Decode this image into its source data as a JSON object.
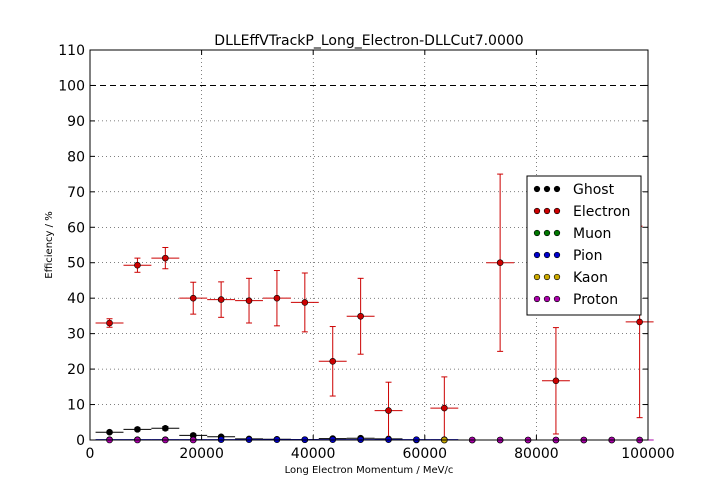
{
  "chart_data": {
    "type": "scatter",
    "title": "DLLEffVTrackP_Long_Electron-DLLCut7.0000",
    "xlabel": "Long Electron Momentum / MeV/c",
    "ylabel": "Efficiency / %",
    "xlim": [
      0,
      100000
    ],
    "ylim": [
      0,
      110
    ],
    "x_ticks": [
      "0",
      "20000",
      "40000",
      "60000",
      "80000",
      "100000"
    ],
    "y_ticks": [
      "0",
      "10",
      "20",
      "30",
      "40",
      "50",
      "60",
      "70",
      "80",
      "90",
      "100",
      "110"
    ],
    "grid": true,
    "reference_line_y": 100,
    "legend_position": "right",
    "series": [
      {
        "name": "Ghost",
        "color": "#000000",
        "points": [
          {
            "x": 3500,
            "xerr": 2500,
            "y": 2.2,
            "yerr": 0.3
          },
          {
            "x": 8500,
            "xerr": 2500,
            "y": 3.0,
            "yerr": 0.4
          },
          {
            "x": 13500,
            "xerr": 2500,
            "y": 3.3,
            "yerr": 0.5
          },
          {
            "x": 18500,
            "xerr": 2500,
            "y": 1.3,
            "yerr": 0.4
          },
          {
            "x": 23500,
            "xerr": 2500,
            "y": 0.9,
            "yerr": 0.3
          },
          {
            "x": 28500,
            "xerr": 2500,
            "y": 0.3,
            "yerr": 0.2
          },
          {
            "x": 33500,
            "xerr": 2500,
            "y": 0.2,
            "yerr": 0.2
          },
          {
            "x": 38500,
            "xerr": 2500,
            "y": 0.1,
            "yerr": 0.1
          },
          {
            "x": 43500,
            "xerr": 2500,
            "y": 0.4,
            "yerr": 0.2
          },
          {
            "x": 48500,
            "xerr": 2500,
            "y": 0.5,
            "yerr": 0.3
          },
          {
            "x": 53500,
            "xerr": 2500,
            "y": 0.3,
            "yerr": 0.2
          },
          {
            "x": 58500,
            "xerr": 2500,
            "y": 0.0,
            "yerr": 0.0
          },
          {
            "x": 63500,
            "xerr": 2500,
            "y": 0.0,
            "yerr": 0.0
          },
          {
            "x": 68500,
            "xerr": 2500,
            "y": 0.0,
            "yerr": 0.0
          },
          {
            "x": 73500,
            "xerr": 2500,
            "y": 0.0,
            "yerr": 0.0
          },
          {
            "x": 78500,
            "xerr": 2500,
            "y": 0.0,
            "yerr": 0.0
          },
          {
            "x": 83500,
            "xerr": 2500,
            "y": 0.0,
            "yerr": 0.0
          },
          {
            "x": 88500,
            "xerr": 2500,
            "y": 0.0,
            "yerr": 0.0
          },
          {
            "x": 93500,
            "xerr": 2500,
            "y": 0.0,
            "yerr": 0.0
          },
          {
            "x": 98500,
            "xerr": 2500,
            "y": 0.0,
            "yerr": 0.0
          }
        ]
      },
      {
        "name": "Electron",
        "color": "#cc0000",
        "points": [
          {
            "x": 3500,
            "xerr": 2500,
            "y": 33.0,
            "yerr": 1.2
          },
          {
            "x": 8500,
            "xerr": 2500,
            "y": 49.3,
            "yerr": 2.0
          },
          {
            "x": 13500,
            "xerr": 2500,
            "y": 51.3,
            "yerr": 3.0
          },
          {
            "x": 18500,
            "xerr": 2500,
            "y": 40.0,
            "yerr": 4.5
          },
          {
            "x": 23500,
            "xerr": 2500,
            "y": 39.6,
            "yerr": 5.0
          },
          {
            "x": 28500,
            "xerr": 2500,
            "y": 39.3,
            "yerr": 6.3
          },
          {
            "x": 33500,
            "xerr": 2500,
            "y": 40.0,
            "yerr": 7.8
          },
          {
            "x": 38500,
            "xerr": 2500,
            "y": 38.8,
            "yerr": 8.3
          },
          {
            "x": 43500,
            "xerr": 2500,
            "y": 22.2,
            "yerr": 9.8
          },
          {
            "x": 48500,
            "xerr": 2500,
            "y": 34.9,
            "yerr": 10.7
          },
          {
            "x": 53500,
            "xerr": 2500,
            "y": 8.3,
            "yerr": 8.0
          },
          {
            "x": 63500,
            "xerr": 2500,
            "y": 9.0,
            "yerr": 8.8
          },
          {
            "x": 73500,
            "xerr": 2500,
            "y": 50.0,
            "yerr": 25.0
          },
          {
            "x": 83500,
            "xerr": 2500,
            "y": 16.7,
            "yerr": 15.0
          },
          {
            "x": 98500,
            "xerr": 2500,
            "y": 33.3,
            "yerr": 27.0
          }
        ]
      },
      {
        "name": "Muon",
        "color": "#007700",
        "points": []
      },
      {
        "name": "Pion",
        "color": "#0000cc",
        "points": [
          {
            "x": 3500,
            "xerr": 2500,
            "y": 0.1,
            "yerr": 0.05
          },
          {
            "x": 8500,
            "xerr": 2500,
            "y": 0.1,
            "yerr": 0.05
          },
          {
            "x": 13500,
            "xerr": 2500,
            "y": 0.1,
            "yerr": 0.05
          },
          {
            "x": 18500,
            "xerr": 2500,
            "y": 0.1,
            "yerr": 0.05
          },
          {
            "x": 23500,
            "xerr": 2500,
            "y": 0.1,
            "yerr": 0.05
          },
          {
            "x": 28500,
            "xerr": 2500,
            "y": 0.1,
            "yerr": 0.05
          },
          {
            "x": 33500,
            "xerr": 2500,
            "y": 0.1,
            "yerr": 0.05
          },
          {
            "x": 38500,
            "xerr": 2500,
            "y": 0.1,
            "yerr": 0.05
          },
          {
            "x": 43500,
            "xerr": 2500,
            "y": 0.1,
            "yerr": 0.05
          },
          {
            "x": 48500,
            "xerr": 2500,
            "y": 0.1,
            "yerr": 0.05
          },
          {
            "x": 53500,
            "xerr": 2500,
            "y": 0.1,
            "yerr": 0.05
          },
          {
            "x": 58500,
            "xerr": 2500,
            "y": 0.1,
            "yerr": 0.05
          },
          {
            "x": 63500,
            "xerr": 2500,
            "y": 0.1,
            "yerr": 0.05
          }
        ]
      },
      {
        "name": "Kaon",
        "color": "#ccaa00",
        "points": [
          {
            "x": 63500,
            "xerr": 2500,
            "y": 0.0,
            "yerr": 0.0
          }
        ]
      },
      {
        "name": "Proton",
        "color": "#aa00aa",
        "points": [
          {
            "x": 3500,
            "xerr": 2500,
            "y": 0.0,
            "yerr": 0.0
          },
          {
            "x": 8500,
            "xerr": 2500,
            "y": 0.0,
            "yerr": 0.0
          },
          {
            "x": 13500,
            "xerr": 2500,
            "y": 0.0,
            "yerr": 0.0
          },
          {
            "x": 18500,
            "xerr": 2500,
            "y": 0.0,
            "yerr": 0.0
          },
          {
            "x": 68500,
            "xerr": 2500,
            "y": 0.0,
            "yerr": 0.0
          },
          {
            "x": 73500,
            "xerr": 2500,
            "y": 0.0,
            "yerr": 0.0
          },
          {
            "x": 78500,
            "xerr": 2500,
            "y": 0.0,
            "yerr": 0.0
          },
          {
            "x": 83500,
            "xerr": 2500,
            "y": 0.0,
            "yerr": 0.0
          },
          {
            "x": 88500,
            "xerr": 2500,
            "y": 0.0,
            "yerr": 0.0
          },
          {
            "x": 93500,
            "xerr": 2500,
            "y": 0.0,
            "yerr": 0.0
          },
          {
            "x": 98500,
            "xerr": 2500,
            "y": 0.0,
            "yerr": 0.0
          }
        ]
      }
    ]
  }
}
